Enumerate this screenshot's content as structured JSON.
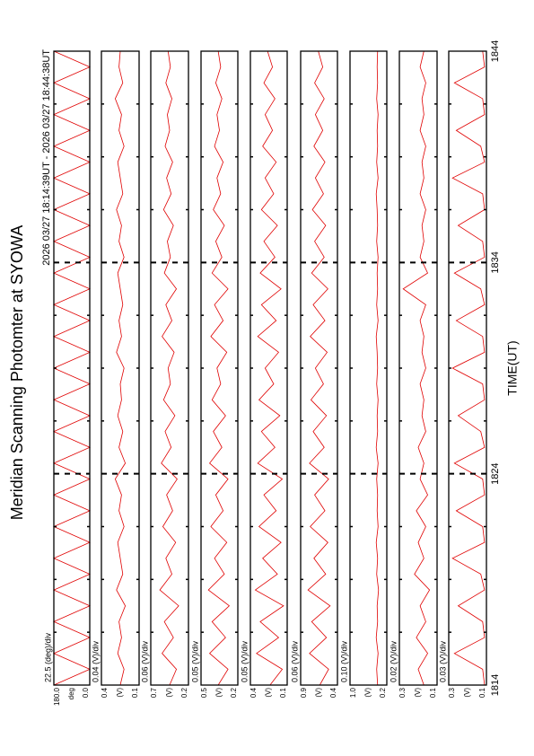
{
  "title": "Meridian Scanning Photomter at SYOWA",
  "time_range": "2026 03/27 18:14:39UT - 2026 03/27 18:44:38UT",
  "time_axis": {
    "label": "TIME(UT)",
    "xlim": [
      1814,
      1844
    ],
    "xticks": [
      1814,
      1824,
      1834,
      1844
    ],
    "x": [
      1814,
      1814.75,
      1815.5,
      1816.25,
      1817,
      1817.75,
      1818.5,
      1819.25,
      1820,
      1820.75,
      1821.5,
      1822.25,
      1823,
      1823.75,
      1824.5,
      1825.25,
      1826,
      1826.75,
      1827.5,
      1828.25,
      1829,
      1829.75,
      1830.5,
      1831.25,
      1832,
      1832.75,
      1833.5,
      1834.25,
      1835,
      1835.75,
      1836.5,
      1837.25,
      1838,
      1838.75,
      1839.5,
      1840.25,
      1841,
      1841.75,
      1842.5,
      1843.25,
      1844
    ]
  },
  "chart_data": [
    {
      "type": "line",
      "scale_label": "22.5 (deg)/div",
      "y_unit": "deg",
      "color": "#e00000",
      "ylim": [
        0,
        180
      ],
      "yticks": [
        {
          "value": 0,
          "label": "0.0"
        },
        {
          "value": 180,
          "label": "180.0"
        }
      ],
      "values": [
        180,
        0,
        180,
        0,
        180,
        0,
        180,
        0,
        180,
        0,
        180,
        0,
        180,
        0,
        180,
        0,
        180,
        0,
        180,
        0,
        180,
        0,
        180,
        0,
        180,
        0,
        180,
        0,
        180,
        0,
        180,
        0,
        180,
        0,
        180,
        0,
        180,
        0,
        180,
        0,
        180
      ]
    },
    {
      "type": "line",
      "scale_label": "0.04 (V)/div",
      "y_unit": "(V)",
      "color": "#e00000",
      "ylim": [
        0.1,
        0.4
      ],
      "yticks": [
        0.1,
        0.4
      ],
      "values": [
        0.25,
        0.22,
        0.27,
        0.24,
        0.26,
        0.21,
        0.28,
        0.23,
        0.25,
        0.27,
        0.22,
        0.26,
        0.24,
        0.29,
        0.21,
        0.26,
        0.23,
        0.27,
        0.24,
        0.25,
        0.22,
        0.28,
        0.24,
        0.26,
        0.23,
        0.25,
        0.27,
        0.22,
        0.26,
        0.24,
        0.28,
        0.23,
        0.25,
        0.27,
        0.22,
        0.26,
        0.24,
        0.29,
        0.23,
        0.26,
        0.25
      ]
    },
    {
      "type": "line",
      "scale_label": "0.06 (V)/div",
      "y_unit": "(V)",
      "color": "#e00000",
      "ylim": [
        0.2,
        0.7
      ],
      "yticks": [
        0.2,
        0.7
      ],
      "values": [
        0.45,
        0.36,
        0.55,
        0.4,
        0.52,
        0.33,
        0.58,
        0.42,
        0.5,
        0.37,
        0.54,
        0.41,
        0.49,
        0.35,
        0.56,
        0.43,
        0.51,
        0.38,
        0.53,
        0.44,
        0.47,
        0.39,
        0.55,
        0.42,
        0.5,
        0.36,
        0.52,
        0.44,
        0.48,
        0.4,
        0.53,
        0.43,
        0.49,
        0.41,
        0.51,
        0.45,
        0.48,
        0.42,
        0.5,
        0.44,
        0.47
      ]
    },
    {
      "type": "line",
      "scale_label": "0.05 (V)/div",
      "y_unit": "(V)",
      "color": "#e00000",
      "ylim": [
        0.2,
        0.5
      ],
      "yticks": [
        0.2,
        0.5
      ],
      "values": [
        0.36,
        0.28,
        0.43,
        0.3,
        0.41,
        0.27,
        0.44,
        0.31,
        0.39,
        0.29,
        0.42,
        0.32,
        0.38,
        0.28,
        0.43,
        0.33,
        0.4,
        0.3,
        0.41,
        0.34,
        0.37,
        0.29,
        0.42,
        0.32,
        0.39,
        0.28,
        0.41,
        0.33,
        0.38,
        0.31,
        0.4,
        0.34,
        0.37,
        0.32,
        0.39,
        0.35,
        0.37,
        0.33,
        0.38,
        0.34,
        0.36
      ]
    },
    {
      "type": "line",
      "scale_label": "0.05 (V)/div",
      "y_unit": "(V)",
      "color": "#e00000",
      "ylim": [
        0.1,
        0.4
      ],
      "yticks": [
        0.1,
        0.4
      ],
      "values": [
        0.24,
        0.14,
        0.35,
        0.17,
        0.32,
        0.13,
        0.36,
        0.18,
        0.3,
        0.15,
        0.33,
        0.19,
        0.29,
        0.14,
        0.34,
        0.2,
        0.31,
        0.16,
        0.33,
        0.21,
        0.28,
        0.17,
        0.34,
        0.19,
        0.31,
        0.15,
        0.32,
        0.2,
        0.29,
        0.18,
        0.31,
        0.21,
        0.28,
        0.19,
        0.3,
        0.22,
        0.28,
        0.2,
        0.29,
        0.22,
        0.26
      ]
    },
    {
      "type": "line",
      "scale_label": "0.06 (V)/div",
      "y_unit": "(V)",
      "color": "#e00000",
      "ylim": [
        0.4,
        0.9
      ],
      "yticks": [
        0.4,
        0.9
      ],
      "values": [
        0.64,
        0.52,
        0.78,
        0.55,
        0.75,
        0.5,
        0.8,
        0.56,
        0.72,
        0.53,
        0.77,
        0.57,
        0.71,
        0.52,
        0.78,
        0.58,
        0.73,
        0.55,
        0.76,
        0.59,
        0.7,
        0.54,
        0.77,
        0.57,
        0.73,
        0.53,
        0.75,
        0.58,
        0.71,
        0.56,
        0.74,
        0.59,
        0.7,
        0.57,
        0.72,
        0.6,
        0.7,
        0.58,
        0.71,
        0.6,
        0.66
      ]
    },
    {
      "type": "line",
      "scale_label": "0.10 (V)/div",
      "y_unit": "(V)",
      "color": "#e00000",
      "ylim": [
        0.2,
        1.0
      ],
      "yticks": [
        0.2,
        {
          "value": 1.0,
          "label": "1.0"
        }
      ],
      "values": [
        0.4,
        0.42,
        0.39,
        0.43,
        0.4,
        0.41,
        0.38,
        0.42,
        0.4,
        0.43,
        0.39,
        0.41,
        0.4,
        0.42,
        0.39,
        0.43,
        0.4,
        0.41,
        0.39,
        0.42,
        0.4,
        0.41,
        0.43,
        0.39,
        0.42,
        0.4,
        0.41,
        0.39,
        0.42,
        0.4,
        0.41,
        0.43,
        0.39,
        0.42,
        0.4,
        0.41,
        0.39,
        0.42,
        0.4,
        0.41,
        0.4
      ]
    },
    {
      "type": "line",
      "scale_label": "0.02 (V)/div",
      "y_unit": "(V)",
      "color": "#e00000",
      "ylim": [
        0.1,
        0.3
      ],
      "yticks": [
        0.1,
        0.3
      ],
      "values": [
        0.17,
        0.2,
        0.15,
        0.21,
        0.16,
        0.19,
        0.14,
        0.22,
        0.17,
        0.2,
        0.16,
        0.21,
        0.15,
        0.19,
        0.17,
        0.2,
        0.16,
        0.18,
        0.17,
        0.19,
        0.16,
        0.18,
        0.17,
        0.19,
        0.16,
        0.28,
        0.15,
        0.19,
        0.17,
        0.18,
        0.16,
        0.19,
        0.17,
        0.18,
        0.16,
        0.19,
        0.17,
        0.18,
        0.16,
        0.19,
        0.17
      ]
    },
    {
      "type": "line",
      "scale_label": "0.03 (V)/div",
      "y_unit": "(V)",
      "color": "#e00000",
      "ylim": [
        0.1,
        0.3
      ],
      "yticks": [
        0.1,
        0.3
      ],
      "values": [
        0.11,
        0.12,
        0.27,
        0.11,
        0.12,
        0.25,
        0.11,
        0.13,
        0.28,
        0.11,
        0.12,
        0.26,
        0.11,
        0.12,
        0.27,
        0.11,
        0.13,
        0.25,
        0.11,
        0.12,
        0.28,
        0.11,
        0.12,
        0.26,
        0.11,
        0.13,
        0.27,
        0.11,
        0.12,
        0.25,
        0.11,
        0.12,
        0.28,
        0.11,
        0.13,
        0.26,
        0.11,
        0.12,
        0.27,
        0.11,
        0.12
      ]
    }
  ]
}
